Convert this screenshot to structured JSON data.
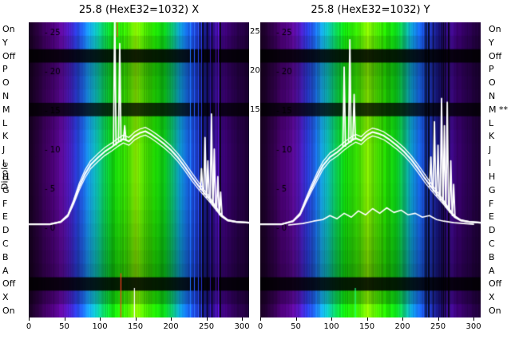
{
  "titles": {
    "left": "25.8 (HexE32=1032) X",
    "right": "25.8 (HexE32=1032) Y"
  },
  "axis": {
    "dipole_label": "Dipole",
    "left_row_labels": [
      "On",
      "Y",
      "Off",
      "P",
      "O",
      "N",
      "M",
      "L",
      "K",
      "J",
      "I",
      "H",
      "G",
      "F",
      "E",
      "D",
      "C",
      "B",
      "A",
      "Off",
      "X",
      "On"
    ],
    "right_row_labels": [
      "On",
      "Y",
      "Off",
      "P",
      "O",
      "N",
      "M **",
      "L",
      "K",
      "J",
      "I",
      "H",
      "G",
      "F",
      "E",
      "D",
      "C",
      "B",
      "A",
      "Off",
      "X",
      "On"
    ],
    "x_ticks": [
      0,
      50,
      100,
      150,
      200,
      250,
      300
    ],
    "inner_y_ticks": [
      25,
      20,
      15,
      10,
      5,
      0
    ],
    "gap_y_ticks": [
      25,
      20,
      15
    ],
    "x_range": [
      0,
      310
    ],
    "y_range": [
      0,
      27
    ]
  },
  "colors": {
    "background": "#ffffff",
    "text": "#000000",
    "curve": "#ffffff"
  },
  "chart_data": [
    {
      "type": "heatmap",
      "panel": "X",
      "title": "25.8 (HexE32=1032) X",
      "x_range": [
        0,
        310
      ],
      "x_ticks": [
        0,
        50,
        100,
        150,
        200,
        250,
        300
      ],
      "y_ticks": [
        25,
        20,
        15,
        10,
        5,
        0
      ],
      "rows": [
        "On",
        "Y",
        "Off",
        "P",
        "O",
        "N",
        "M",
        "L",
        "K",
        "J",
        "I",
        "H",
        "G",
        "F",
        "E",
        "D",
        "C",
        "B",
        "A",
        "Off",
        "X",
        "On"
      ],
      "row_factors": [
        1.08,
        0.95,
        0.13,
        0.78,
        0.84,
        0.88,
        0.22,
        0.92,
        0.97,
        1.0,
        1.0,
        1.0,
        0.98,
        0.96,
        0.92,
        0.88,
        0.84,
        0.8,
        0.74,
        0.13,
        0.85,
        1.12
      ],
      "color_stops": [
        [
          0,
          "#16001f"
        ],
        [
          14,
          "#2b0041"
        ],
        [
          30,
          "#47006f"
        ],
        [
          46,
          "#5c0a9a"
        ],
        [
          56,
          "#4a1ab8"
        ],
        [
          66,
          "#2a3ad4"
        ],
        [
          76,
          "#1e66e8"
        ],
        [
          86,
          "#16a2de"
        ],
        [
          96,
          "#0cb6a2"
        ],
        [
          106,
          "#0cca52"
        ],
        [
          118,
          "#10d40c"
        ],
        [
          138,
          "#3ede02"
        ],
        [
          150,
          "#86e602"
        ],
        [
          160,
          "#55de02"
        ],
        [
          176,
          "#20d402"
        ],
        [
          190,
          "#0cca16"
        ],
        [
          202,
          "#0cb670"
        ],
        [
          212,
          "#0e98ca"
        ],
        [
          222,
          "#1666de"
        ],
        [
          232,
          "#1a42ca"
        ],
        [
          242,
          "#1e2aa2"
        ],
        [
          251,
          "#161070"
        ],
        [
          259,
          "#2c0c7a"
        ],
        [
          267,
          "#3e0c8e"
        ],
        [
          277,
          "#3a0070"
        ],
        [
          290,
          "#2b0052"
        ],
        [
          310,
          "#1d0034"
        ]
      ],
      "stripe_zone": [
        226,
        270
      ],
      "noise_seed": 11,
      "main_curve": [
        [
          0,
          0.4
        ],
        [
          30,
          0.4
        ],
        [
          45,
          0.7
        ],
        [
          55,
          1.5
        ],
        [
          63,
          3.2
        ],
        [
          71,
          5.2
        ],
        [
          79,
          6.8
        ],
        [
          87,
          8.0
        ],
        [
          97,
          8.9
        ],
        [
          107,
          9.7
        ],
        [
          117,
          10.3
        ],
        [
          126,
          10.9
        ],
        [
          133,
          11.3
        ],
        [
          141,
          11.0
        ],
        [
          149,
          11.7
        ],
        [
          157,
          12.1
        ],
        [
          164,
          12.3
        ],
        [
          172,
          11.9
        ],
        [
          180,
          11.4
        ],
        [
          190,
          10.7
        ],
        [
          200,
          9.9
        ],
        [
          210,
          8.9
        ],
        [
          220,
          7.7
        ],
        [
          230,
          6.4
        ],
        [
          239,
          5.3
        ],
        [
          247,
          4.4
        ],
        [
          255,
          3.5
        ],
        [
          263,
          2.5
        ],
        [
          271,
          1.5
        ],
        [
          280,
          0.9
        ],
        [
          292,
          0.7
        ],
        [
          310,
          0.6
        ]
      ],
      "spikes": [
        [
          121,
          28
        ],
        [
          128,
          23.5
        ],
        [
          135,
          13
        ],
        [
          243,
          7.5
        ],
        [
          248,
          11.5
        ],
        [
          252,
          8.5
        ],
        [
          257,
          14.5
        ],
        [
          261,
          10
        ],
        [
          266,
          6.5
        ],
        [
          270,
          4.5
        ]
      ],
      "extra_curve": [],
      "artifact_lines": [
        [
          129,
          0.85,
          1.0,
          "#ff4020"
        ],
        [
          148,
          0.9,
          1.0,
          "#ffffff"
        ],
        [
          124,
          0.0,
          0.05,
          "#ff4020"
        ]
      ]
    },
    {
      "type": "heatmap",
      "panel": "Y",
      "title": "25.8 (HexE32=1032) Y",
      "x_range": [
        0,
        310
      ],
      "x_ticks": [
        0,
        50,
        100,
        150,
        200,
        250,
        300
      ],
      "y_ticks": [
        25,
        20,
        15,
        10,
        5,
        0
      ],
      "rows": [
        "On",
        "Y",
        "Off",
        "P",
        "O",
        "N",
        "M",
        "L",
        "K",
        "J",
        "I",
        "H",
        "G",
        "F",
        "E",
        "D",
        "C",
        "B",
        "A",
        "Off",
        "X",
        "On"
      ],
      "row_factors": [
        1.08,
        0.95,
        0.13,
        0.78,
        0.84,
        0.88,
        0.22,
        0.92,
        0.97,
        1.0,
        1.0,
        1.0,
        0.98,
        0.96,
        0.92,
        0.88,
        0.84,
        0.8,
        0.74,
        0.13,
        0.85,
        1.12
      ],
      "color_stops": [
        [
          0,
          "#16001f"
        ],
        [
          14,
          "#2b0041"
        ],
        [
          30,
          "#47006f"
        ],
        [
          46,
          "#5c0a9a"
        ],
        [
          56,
          "#4a1ab8"
        ],
        [
          66,
          "#2a3ad4"
        ],
        [
          76,
          "#1e66e8"
        ],
        [
          86,
          "#16a2de"
        ],
        [
          96,
          "#0cb6a2"
        ],
        [
          106,
          "#0cca52"
        ],
        [
          118,
          "#10d40c"
        ],
        [
          138,
          "#3ede02"
        ],
        [
          150,
          "#86e602"
        ],
        [
          160,
          "#55de02"
        ],
        [
          176,
          "#20d402"
        ],
        [
          190,
          "#0cca16"
        ],
        [
          202,
          "#0cb670"
        ],
        [
          212,
          "#0e98ca"
        ],
        [
          222,
          "#1666de"
        ],
        [
          232,
          "#1a42ca"
        ],
        [
          242,
          "#1e2aa2"
        ],
        [
          251,
          "#161070"
        ],
        [
          259,
          "#2c0c7a"
        ],
        [
          267,
          "#3e0c8e"
        ],
        [
          277,
          "#3a0070"
        ],
        [
          290,
          "#2b0052"
        ],
        [
          310,
          "#1d0034"
        ]
      ],
      "stripe_zone": [
        226,
        270
      ],
      "noise_seed": 37,
      "main_curve": [
        [
          0,
          0.4
        ],
        [
          30,
          0.4
        ],
        [
          46,
          0.8
        ],
        [
          56,
          1.7
        ],
        [
          64,
          3.4
        ],
        [
          72,
          5.0
        ],
        [
          80,
          6.5
        ],
        [
          88,
          7.9
        ],
        [
          98,
          9.0
        ],
        [
          108,
          9.6
        ],
        [
          118,
          10.4
        ],
        [
          127,
          11.0
        ],
        [
          134,
          11.4
        ],
        [
          142,
          11.1
        ],
        [
          150,
          11.8
        ],
        [
          158,
          12.2
        ],
        [
          166,
          12.0
        ],
        [
          174,
          11.7
        ],
        [
          182,
          11.2
        ],
        [
          192,
          10.5
        ],
        [
          202,
          9.7
        ],
        [
          212,
          8.7
        ],
        [
          222,
          7.5
        ],
        [
          232,
          6.2
        ],
        [
          241,
          5.1
        ],
        [
          249,
          4.2
        ],
        [
          257,
          3.3
        ],
        [
          265,
          2.3
        ],
        [
          273,
          1.4
        ],
        [
          282,
          0.9
        ],
        [
          294,
          0.7
        ],
        [
          310,
          0.6
        ]
      ],
      "spikes": [
        [
          118,
          20.5
        ],
        [
          126,
          24
        ],
        [
          132,
          17
        ],
        [
          240,
          9
        ],
        [
          245,
          13.5
        ],
        [
          250,
          10.5
        ],
        [
          255,
          16.5
        ],
        [
          259,
          13
        ],
        [
          263,
          16
        ],
        [
          268,
          8.5
        ],
        [
          272,
          5.5
        ]
      ],
      "extra_curve": [
        [
          40,
          0.3
        ],
        [
          60,
          0.5
        ],
        [
          75,
          0.8
        ],
        [
          88,
          1.0
        ],
        [
          98,
          1.5
        ],
        [
          108,
          1.1
        ],
        [
          118,
          1.8
        ],
        [
          128,
          1.3
        ],
        [
          138,
          2.1
        ],
        [
          148,
          1.6
        ],
        [
          158,
          2.4
        ],
        [
          168,
          1.8
        ],
        [
          178,
          2.5
        ],
        [
          188,
          1.9
        ],
        [
          198,
          2.2
        ],
        [
          208,
          1.6
        ],
        [
          218,
          1.8
        ],
        [
          228,
          1.3
        ],
        [
          238,
          1.5
        ],
        [
          248,
          1.0
        ],
        [
          258,
          0.8
        ],
        [
          272,
          0.6
        ],
        [
          300,
          0.4
        ]
      ],
      "artifact_lines": [
        [
          133,
          0.9,
          1.0,
          "#20ff80"
        ]
      ]
    }
  ]
}
